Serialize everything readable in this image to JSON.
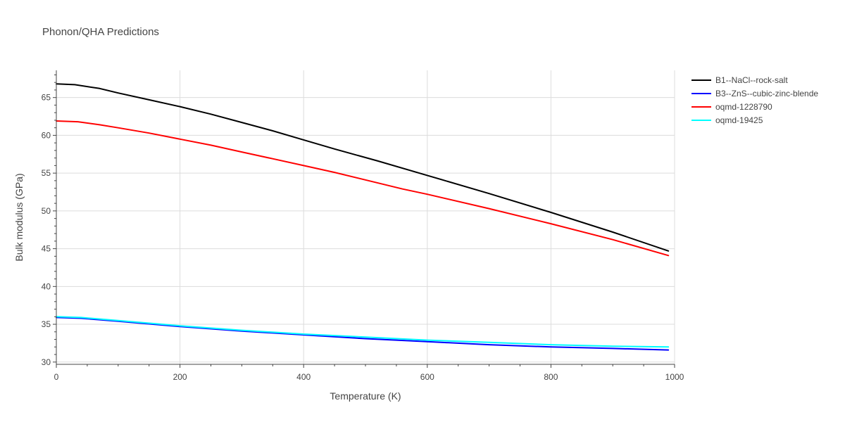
{
  "chart_data": {
    "type": "line",
    "title": "Phonon/QHA Predictions",
    "xlabel": "Temperature (K)",
    "ylabel": "Bulk modulus (GPa)",
    "xlim": [
      0,
      1000
    ],
    "ylim": [
      29.7,
      68.6
    ],
    "xticks": [
      0,
      200,
      400,
      600,
      800,
      1000
    ],
    "yticks": [
      30,
      35,
      40,
      45,
      50,
      55,
      60,
      65
    ],
    "grid": true,
    "legend_position": "top-right",
    "series": [
      {
        "name": "B1--NaCl--rock-salt",
        "color": "#000000",
        "x": [
          0,
          30,
          70,
          100,
          150,
          200,
          250,
          300,
          350,
          400,
          450,
          520,
          600,
          700,
          800,
          900,
          990
        ],
        "y": [
          66.8,
          66.7,
          66.2,
          65.6,
          64.7,
          63.8,
          62.8,
          61.7,
          60.6,
          59.4,
          58.2,
          56.6,
          54.7,
          52.3,
          49.8,
          47.2,
          44.7
        ]
      },
      {
        "name": "B3--ZnS--cubic-zinc-blende",
        "color": "#0000ff",
        "x": [
          0,
          40,
          100,
          200,
          300,
          400,
          500,
          600,
          700,
          800,
          900,
          990
        ],
        "y": [
          35.9,
          35.8,
          35.4,
          34.7,
          34.1,
          33.6,
          33.1,
          32.7,
          32.3,
          32.0,
          31.8,
          31.6
        ]
      },
      {
        "name": "oqmd-1228790",
        "color": "#ff0000",
        "x": [
          0,
          35,
          70,
          100,
          150,
          200,
          250,
          300,
          350,
          400,
          450,
          500,
          560,
          600,
          700,
          800,
          900,
          990
        ],
        "y": [
          61.9,
          61.8,
          61.4,
          61.0,
          60.3,
          59.5,
          58.7,
          57.8,
          56.9,
          56.0,
          55.1,
          54.1,
          52.9,
          52.2,
          50.3,
          48.3,
          46.2,
          44.1
        ]
      },
      {
        "name": "oqmd-19425",
        "color": "#00ffff",
        "x": [
          0,
          40,
          100,
          200,
          300,
          400,
          500,
          600,
          700,
          800,
          900,
          990
        ],
        "y": [
          36.0,
          35.9,
          35.5,
          34.8,
          34.2,
          33.7,
          33.3,
          32.9,
          32.6,
          32.3,
          32.1,
          32.0
        ]
      }
    ]
  }
}
